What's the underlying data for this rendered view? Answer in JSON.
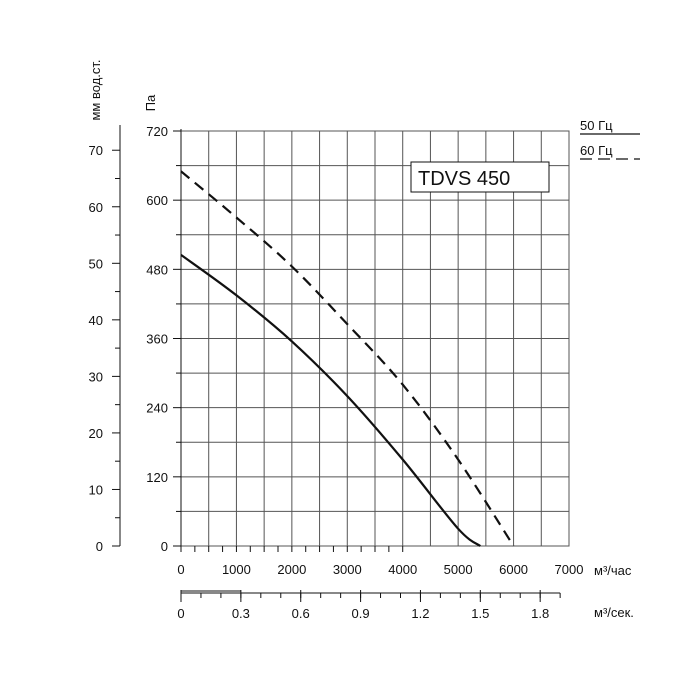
{
  "chart_data": {
    "type": "line",
    "model_label": "TDVS 450",
    "y_left_outer": {
      "label": "мм вод.ст.",
      "ticks": [
        0,
        10,
        20,
        30,
        40,
        50,
        60,
        70
      ],
      "range": [
        0,
        73.4
      ]
    },
    "y_left_inner": {
      "label": "Па",
      "ticks": [
        0,
        120,
        240,
        360,
        480,
        600,
        720
      ],
      "range": [
        0,
        720
      ]
    },
    "x_axis": {
      "label": "м³/час",
      "ticks": [
        0,
        1000,
        2000,
        3000,
        4000,
        5000,
        6000,
        7000
      ],
      "range": [
        0,
        7000
      ]
    },
    "x_axis_secondary": {
      "label": "м³/сек.",
      "ticks": [
        "0",
        "0.3",
        "0.6",
        "0.9",
        "1.2",
        "1.5",
        "1.8"
      ],
      "tick_values": [
        0,
        0.3,
        0.6,
        0.9,
        1.2,
        1.5,
        1.8
      ]
    },
    "legend": [
      {
        "label": "50 Гц",
        "style": "solid"
      },
      {
        "label": "60 Гц",
        "style": "dashed"
      }
    ],
    "series": [
      {
        "name": "50 Гц",
        "style": "solid",
        "x": [
          0,
          1000,
          2000,
          3000,
          4000,
          5000,
          5400
        ],
        "y": [
          505,
          435,
          355,
          260,
          150,
          30,
          0
        ]
      },
      {
        "name": "60 Гц",
        "style": "dashed",
        "x": [
          0,
          1000,
          2000,
          3000,
          4000,
          5000,
          6000
        ],
        "y": [
          650,
          570,
          485,
          385,
          280,
          150,
          0
        ]
      }
    ],
    "grid": true,
    "colors": {
      "line": "#111111",
      "grid": "#555555"
    }
  }
}
